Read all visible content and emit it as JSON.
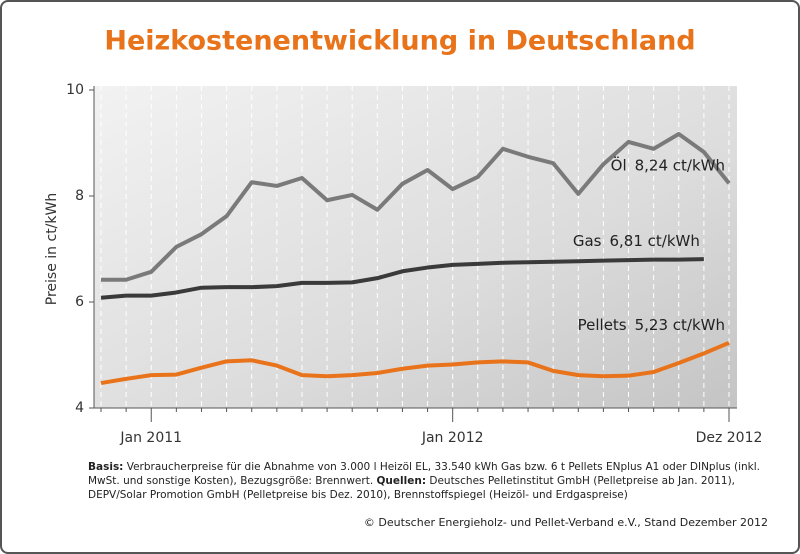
{
  "chart_data": {
    "type": "line",
    "title": "Heizkostenentwicklung in Deutschland",
    "ylabel": "Preise in ct/kWh",
    "ylim": [
      4,
      10
    ],
    "yticks": [
      4,
      6,
      8,
      10
    ],
    "categories": [
      null,
      null,
      "Jan 2011",
      null,
      null,
      null,
      null,
      null,
      null,
      null,
      null,
      null,
      null,
      null,
      "Jan 2012",
      null,
      null,
      null,
      null,
      null,
      null,
      null,
      null,
      null,
      null,
      "Dez 2012"
    ],
    "series": [
      {
        "name": "Öl",
        "color": "#7a7a7a",
        "values": [
          6.42,
          6.42,
          6.57,
          7.04,
          7.28,
          7.62,
          8.26,
          8.19,
          8.34,
          7.92,
          8.02,
          7.74,
          8.23,
          8.49,
          8.13,
          8.36,
          8.89,
          8.74,
          8.62,
          8.04,
          8.6,
          9.02,
          8.89,
          9.17,
          8.83,
          8.24
        ],
        "value_labels": [
          null,
          null,
          null,
          null,
          null,
          null,
          null,
          null,
          null,
          null,
          null,
          null,
          null,
          null,
          null,
          null,
          null,
          null,
          null,
          null,
          null,
          null,
          null,
          null,
          null,
          "8,24 ct/kWh"
        ]
      },
      {
        "name": "Gas",
        "color": "#3a3a3a",
        "values": [
          6.08,
          6.12,
          6.12,
          6.18,
          6.27,
          6.28,
          6.28,
          6.3,
          6.36,
          6.36,
          6.37,
          6.45,
          6.58,
          6.65,
          6.7,
          6.72,
          6.74,
          6.75,
          6.76,
          6.77,
          6.78,
          6.79,
          6.8,
          6.8,
          6.81,
          null
        ],
        "value_labels": [
          null,
          null,
          null,
          null,
          null,
          null,
          null,
          null,
          null,
          null,
          null,
          null,
          null,
          null,
          null,
          null,
          null,
          null,
          null,
          null,
          null,
          null,
          null,
          null,
          "6,81 ct/kWh",
          null
        ]
      },
      {
        "name": "Pellets",
        "color": "#e8731a",
        "values": [
          4.47,
          4.55,
          4.62,
          4.63,
          4.76,
          4.88,
          4.9,
          4.8,
          4.62,
          4.6,
          4.62,
          4.66,
          4.74,
          4.8,
          4.82,
          4.86,
          4.88,
          4.86,
          4.7,
          4.62,
          4.6,
          4.61,
          4.68,
          4.85,
          5.03,
          5.23
        ],
        "value_labels": [
          null,
          null,
          null,
          null,
          null,
          null,
          null,
          null,
          null,
          null,
          null,
          null,
          null,
          null,
          null,
          null,
          null,
          null,
          null,
          null,
          null,
          null,
          null,
          null,
          null,
          "5,23 ct/kWh"
        ]
      }
    ],
    "footnote": [
      "Basis:",
      " Verbraucherpreise für die Abnahme von 3.000 l Heizöl EL, 33.540 kWh Gas bzw. 6 t Pellets ENplus A1 oder DINplus (inkl. MwSt. und sonstige Kosten), Bezugsgröße: Brennwert. ",
      "Quellen:",
      " Deutsches Pelletinstitut GmbH (Pelletpreise ab Jan. 2011), DEPV/Solar Promotion GmbH (Pelletpreise bis Dez. 2010), Brennstoffspiegel (Heizöl- und Erdgaspreise)"
    ],
    "copyright": "© Deutscher Energieholz- und Pellet-Verband e.V., Stand Dezember 2012"
  }
}
